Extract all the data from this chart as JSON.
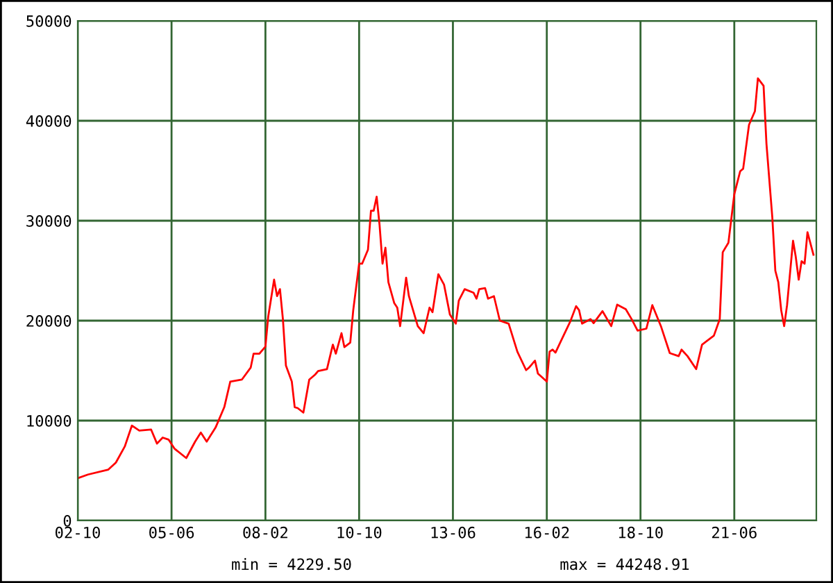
{
  "chart_data": {
    "type": "line",
    "x": [
      "2002-10",
      "2003-01-15",
      "2003-08-15",
      "2003-11",
      "2004-02",
      "2004-04-15",
      "2004-07",
      "2004-11",
      "2005-01",
      "2005-03",
      "2005-05",
      "2005-07",
      "2005-11",
      "2006-02",
      "2006-04",
      "2006-06",
      "2006-09",
      "2006-12",
      "2007-02",
      "2007-06",
      "2007-09",
      "2007-10",
      "2007-12",
      "2008-02",
      "2008-03",
      "2008-05",
      "2008-06",
      "2008-07",
      "2008-08",
      "2008-09",
      "2008-11",
      "2008-12",
      "2009-01",
      "2009-03",
      "2009-05",
      "2009-07",
      "2009-08",
      "2009-11",
      "2010-01",
      "2010-02",
      "2010-04",
      "2010-05",
      "2010-07",
      "2010-08",
      "2010-10",
      "2010-11",
      "2011-01",
      "2011-02",
      "2011-03",
      "2011-04",
      "2011-05",
      "2011-06",
      "2011-07",
      "2011-08",
      "2011-10",
      "2011-11",
      "2011-12",
      "2012-02",
      "2012-03",
      "2012-06",
      "2012-08",
      "2012-10",
      "2012-11",
      "2013-01",
      "2013-03",
      "2013-05",
      "2013-07",
      "2013-08",
      "2013-10",
      "2014-01",
      "2014-02",
      "2014-03",
      "2014-05",
      "2014-06",
      "2014-08",
      "2014-10",
      "2015-01",
      "2015-04",
      "2015-07",
      "2015-08",
      "2015-10",
      "2015-11",
      "2016-02",
      "2016-03",
      "2016-04",
      "2016-05",
      "2016-07",
      "2016-10",
      "2016-12",
      "2017-01",
      "2017-02",
      "2017-05",
      "2017-06",
      "2017-09",
      "2017-12",
      "2018-02",
      "2018-05",
      "2018-07",
      "2018-09",
      "2018-12",
      "2019-02",
      "2019-05",
      "2019-08",
      "2019-11",
      "2019-12",
      "2020-02",
      "2020-05",
      "2020-07",
      "2020-11",
      "2021-01",
      "2021-02",
      "2021-04",
      "2021-06",
      "2021-08",
      "2021-09",
      "2021-11",
      "2022-01",
      "2022-02",
      "2022-04",
      "2022-05",
      "2022-07",
      "2022-08",
      "2022-09",
      "2022-10",
      "2022-11",
      "2022-12",
      "2023-02",
      "2023-03",
      "2023-04",
      "2023-05",
      "2023-06",
      "2023-07",
      "2023-09"
    ],
    "series": [
      {
        "color": "#ff0000",
        "values": [
          4230,
          4600,
          5100,
          5800,
          7400,
          9500,
          9000,
          9100,
          7700,
          8300,
          8100,
          7200,
          6250,
          7900,
          8800,
          7900,
          9300,
          11350,
          13900,
          14100,
          15300,
          16700,
          16700,
          17400,
          20400,
          24100,
          22450,
          23150,
          20100,
          15500,
          13900,
          11350,
          11250,
          10800,
          14100,
          14600,
          14950,
          15150,
          17600,
          16700,
          18750,
          17350,
          17800,
          21050,
          25700,
          25700,
          27100,
          31000,
          31000,
          32400,
          29600,
          25700,
          27300,
          23850,
          21750,
          21300,
          19450,
          24300,
          22450,
          19450,
          18750,
          21300,
          20850,
          24650,
          23600,
          20600,
          19700,
          22000,
          23150,
          22800,
          22200,
          23150,
          23250,
          22200,
          22450,
          20000,
          19700,
          16900,
          15050,
          15300,
          16000,
          14700,
          13900,
          16900,
          17100,
          16800,
          18050,
          19900,
          21450,
          21050,
          19700,
          20150,
          19750,
          20950,
          19450,
          21600,
          21150,
          20150,
          19000,
          19200,
          21550,
          19450,
          16750,
          16450,
          17100,
          16450,
          15150,
          17600,
          18500,
          20150,
          26850,
          27800,
          32650,
          34950,
          35200,
          39600,
          40950,
          44250,
          43500,
          37700,
          30300,
          25000,
          23850,
          21050,
          19450,
          21550,
          28000,
          26400,
          24100,
          25950,
          25700,
          28850,
          26600
        ]
      }
    ],
    "xlim": [
      "2002-10",
      "2023-10"
    ],
    "xticks": [
      {
        "value": "2002-10",
        "label": "02-10"
      },
      {
        "value": "2005-06",
        "label": "05-06"
      },
      {
        "value": "2008-02",
        "label": "08-02"
      },
      {
        "value": "2010-10",
        "label": "10-10"
      },
      {
        "value": "2013-06",
        "label": "13-06"
      },
      {
        "value": "2016-02",
        "label": "16-02"
      },
      {
        "value": "2018-10",
        "label": "18-10"
      },
      {
        "value": "2021-06",
        "label": "21-06"
      }
    ],
    "ylim": [
      0,
      50000
    ],
    "yticks": [
      0,
      10000,
      20000,
      30000,
      40000,
      50000
    ],
    "grid": true,
    "line_style": "solid",
    "marker": "none",
    "annotations": [
      "min = 4229.50",
      "max = 44248.91"
    ]
  }
}
